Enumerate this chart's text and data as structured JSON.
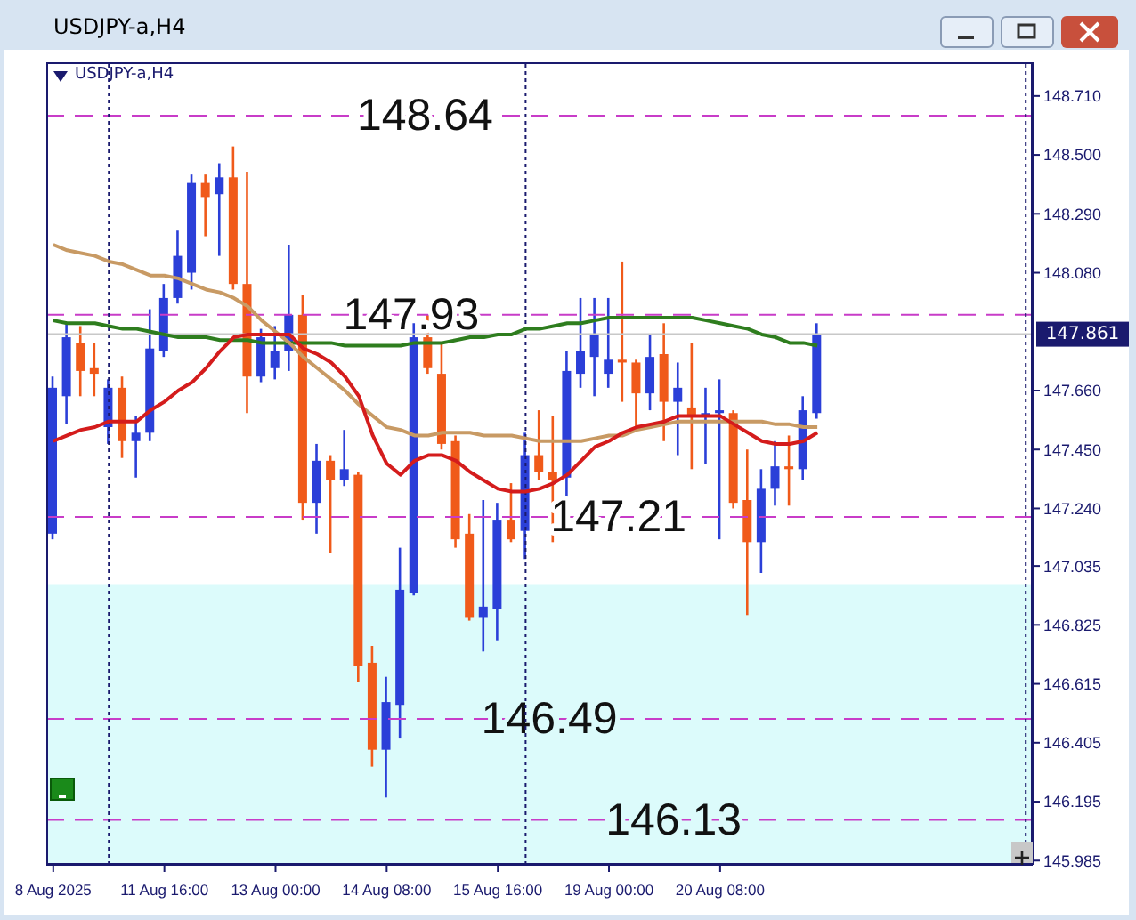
{
  "chart_data": {
    "type": "candlestick",
    "title": "USDJPY-a,H4",
    "subtitle": "USDJPY-a,H4",
    "categories": [
      "8 Aug 2025",
      null,
      null,
      null,
      null,
      null,
      null,
      null,
      "11 Aug 16:00",
      null,
      null,
      null,
      null,
      null,
      null,
      null,
      "13 Aug 00:00",
      null,
      null,
      null,
      null,
      null,
      null,
      null,
      "14 Aug 08:00",
      null,
      null,
      null,
      null,
      null,
      null,
      null,
      "15 Aug 16:00",
      null,
      null,
      null,
      null,
      null,
      null,
      null,
      "19 Aug 00:00",
      null,
      null,
      null,
      null,
      null,
      null,
      null,
      "20 Aug 08:00",
      null,
      null,
      null,
      null,
      null,
      null,
      null,
      null,
      null,
      null,
      null,
      null,
      null,
      null,
      null,
      null,
      null,
      null,
      null,
      null,
      null,
      null
    ],
    "ylim": [
      145.97,
      148.83
    ],
    "yticks": [
      {
        "value": 148.71,
        "label": "148.710"
      },
      {
        "value": 148.5,
        "label": "148.500"
      },
      {
        "value": 148.29,
        "label": "148.290"
      },
      {
        "value": 148.08,
        "label": "148.080"
      },
      {
        "value": 147.66,
        "label": "147.660"
      },
      {
        "value": 147.45,
        "label": "147.450"
      },
      {
        "value": 147.24,
        "label": "147.240"
      },
      {
        "value": 147.035,
        "label": "147.035"
      },
      {
        "value": 146.825,
        "label": "146.825"
      },
      {
        "value": 146.615,
        "label": "146.615"
      },
      {
        "value": 146.405,
        "label": "146.405"
      },
      {
        "value": 146.195,
        "label": "146.195"
      },
      {
        "value": 145.985,
        "label": "145.985"
      }
    ],
    "ohlc": [
      [
        147.15,
        147.71,
        147.13,
        147.67
      ],
      [
        147.64,
        147.9,
        147.54,
        147.85
      ],
      [
        147.83,
        147.89,
        147.64,
        147.73
      ],
      [
        147.74,
        147.83,
        147.64,
        147.72
      ],
      [
        147.53,
        147.7,
        147.47,
        147.67
      ],
      [
        147.67,
        147.71,
        147.42,
        147.48
      ],
      [
        147.48,
        147.57,
        147.35,
        147.51
      ],
      [
        147.51,
        147.95,
        147.48,
        147.81
      ],
      [
        147.8,
        148.04,
        147.78,
        147.99
      ],
      [
        147.99,
        148.23,
        147.97,
        148.14
      ],
      [
        148.08,
        148.43,
        148.02,
        148.4
      ],
      [
        148.4,
        148.43,
        148.21,
        148.35
      ],
      [
        148.36,
        148.47,
        148.14,
        148.42
      ],
      [
        148.42,
        148.53,
        148.02,
        148.04
      ],
      [
        148.04,
        148.44,
        147.58,
        147.71
      ],
      [
        147.71,
        147.88,
        147.69,
        147.85
      ],
      [
        147.74,
        147.89,
        147.7,
        147.8
      ],
      [
        147.8,
        148.18,
        147.73,
        147.93
      ],
      [
        147.93,
        148.0,
        147.2,
        147.26
      ],
      [
        147.26,
        147.47,
        147.15,
        147.41
      ],
      [
        147.41,
        147.43,
        147.08,
        147.34
      ],
      [
        147.34,
        147.52,
        147.32,
        147.38
      ],
      [
        147.36,
        147.37,
        146.62,
        146.68
      ],
      [
        146.69,
        146.75,
        146.32,
        146.38
      ],
      [
        146.38,
        146.64,
        146.21,
        146.55
      ],
      [
        146.54,
        147.1,
        146.42,
        146.95
      ],
      [
        146.94,
        147.9,
        146.93,
        147.85
      ],
      [
        147.85,
        147.93,
        147.72,
        147.74
      ],
      [
        147.72,
        147.83,
        147.45,
        147.47
      ],
      [
        147.48,
        147.5,
        147.1,
        147.13
      ],
      [
        147.15,
        147.22,
        146.84,
        146.85
      ],
      [
        146.85,
        147.27,
        146.73,
        146.89
      ],
      [
        146.88,
        147.26,
        146.77,
        147.2
      ],
      [
        147.2,
        147.33,
        147.12,
        147.13
      ],
      [
        147.16,
        147.51,
        147.06,
        147.43
      ],
      [
        147.43,
        147.59,
        147.34,
        147.37
      ],
      [
        147.37,
        147.57,
        147.12,
        147.34
      ],
      [
        147.35,
        147.8,
        147.27,
        147.73
      ],
      [
        147.72,
        147.99,
        147.67,
        147.8
      ],
      [
        147.78,
        147.99,
        147.64,
        147.86
      ],
      [
        147.72,
        147.99,
        147.67,
        147.77
      ],
      [
        147.77,
        148.12,
        147.62,
        147.76
      ],
      [
        147.76,
        147.77,
        147.52,
        147.65
      ],
      [
        147.65,
        147.86,
        147.59,
        147.78
      ],
      [
        147.79,
        147.9,
        147.48,
        147.62
      ],
      [
        147.62,
        147.76,
        147.43,
        147.67
      ],
      [
        147.6,
        147.83,
        147.38,
        147.57
      ],
      [
        147.57,
        147.67,
        147.4,
        147.58
      ],
      [
        147.58,
        147.7,
        147.13,
        147.59
      ],
      [
        147.58,
        147.59,
        147.24,
        147.26
      ],
      [
        147.27,
        147.45,
        146.86,
        147.12
      ],
      [
        147.12,
        147.38,
        147.01,
        147.31
      ],
      [
        147.31,
        147.48,
        147.25,
        147.39
      ],
      [
        147.39,
        147.5,
        147.25,
        147.38
      ],
      [
        147.38,
        147.64,
        147.34,
        147.59
      ],
      [
        147.58,
        147.9,
        147.56,
        147.86
      ],
      null,
      null,
      null,
      null,
      null,
      null,
      null,
      null,
      null,
      null,
      null,
      null,
      null,
      null,
      null
    ],
    "colors": [
      "#2b3fd8",
      "#2b3fd8",
      "#f05a1a",
      "#f05a1a",
      "#2b3fd8",
      "#f05a1a",
      "#2b3fd8",
      "#2b3fd8",
      "#2b3fd8",
      "#2b3fd8",
      "#2b3fd8",
      "#f05a1a",
      "#2b3fd8",
      "#f05a1a",
      "#f05a1a",
      "#2b3fd8",
      "#2b3fd8",
      "#2b3fd8",
      "#f05a1a",
      "#2b3fd8",
      "#f05a1a",
      "#2b3fd8",
      "#f05a1a",
      "#f05a1a",
      "#2b3fd8",
      "#2b3fd8",
      "#2b3fd8",
      "#f05a1a",
      "#f05a1a",
      "#f05a1a",
      "#f05a1a",
      "#2b3fd8",
      "#2b3fd8",
      "#f05a1a",
      "#2b3fd8",
      "#f05a1a",
      "#f05a1a",
      "#2b3fd8",
      "#2b3fd8",
      "#2b3fd8",
      "#2b3fd8",
      "#f05a1a",
      "#f05a1a",
      "#2b3fd8",
      "#f05a1a",
      "#2b3fd8",
      "#f05a1a",
      "#2b3fd8",
      "#2b3fd8",
      "#f05a1a",
      "#f05a1a",
      "#2b3fd8",
      "#2b3fd8",
      "#f05a1a",
      "#2b3fd8",
      "#2b3fd8",
      null,
      null,
      null,
      null,
      null,
      null,
      null,
      null,
      null,
      null,
      null,
      null,
      null,
      null,
      null
    ],
    "series": [
      {
        "type": "line",
        "color": "#2e7d1e",
        "values": [
          147.91,
          147.9,
          147.9,
          147.9,
          147.89,
          147.88,
          147.88,
          147.87,
          147.86,
          147.85,
          147.85,
          147.85,
          147.84,
          147.84,
          147.84,
          147.83,
          147.83,
          147.83,
          147.83,
          147.83,
          147.83,
          147.82,
          147.82,
          147.82,
          147.82,
          147.82,
          147.83,
          147.83,
          147.83,
          147.84,
          147.85,
          147.85,
          147.86,
          147.86,
          147.88,
          147.88,
          147.89,
          147.9,
          147.9,
          147.91,
          147.92,
          147.92,
          147.92,
          147.92,
          147.92,
          147.92,
          147.92,
          147.91,
          147.9,
          147.89,
          147.88,
          147.86,
          147.85,
          147.83,
          147.83,
          147.82,
          null,
          null,
          null,
          null,
          null,
          null,
          null,
          null,
          null,
          null,
          null,
          null,
          null,
          null,
          null
        ]
      },
      {
        "type": "line",
        "color": "#c89a64",
        "values": [
          148.18,
          148.16,
          148.15,
          148.14,
          148.12,
          148.11,
          148.09,
          148.07,
          148.07,
          148.06,
          148.04,
          148.02,
          148.01,
          147.99,
          147.96,
          147.91,
          147.87,
          147.83,
          147.78,
          147.74,
          147.7,
          147.66,
          147.61,
          147.57,
          147.53,
          147.52,
          147.5,
          147.5,
          147.51,
          147.51,
          147.51,
          147.5,
          147.5,
          147.5,
          147.49,
          147.48,
          147.48,
          147.48,
          147.48,
          147.49,
          147.5,
          147.5,
          147.52,
          147.53,
          147.54,
          147.55,
          147.55,
          147.55,
          147.55,
          147.55,
          147.55,
          147.55,
          147.54,
          147.54,
          147.53,
          147.53,
          null,
          null,
          null,
          null,
          null,
          null,
          null,
          null,
          null,
          null,
          null,
          null,
          null,
          null,
          null
        ]
      },
      {
        "type": "line",
        "color": "#d41c1c",
        "values": [
          147.48,
          147.5,
          147.52,
          147.53,
          147.55,
          147.55,
          147.55,
          147.59,
          147.62,
          147.66,
          147.69,
          147.74,
          147.8,
          147.85,
          147.86,
          147.86,
          147.86,
          147.86,
          147.81,
          147.79,
          147.76,
          147.71,
          147.64,
          147.5,
          147.4,
          147.36,
          147.41,
          147.43,
          147.43,
          147.41,
          147.37,
          147.34,
          147.31,
          147.3,
          147.3,
          147.31,
          147.33,
          147.36,
          147.41,
          147.46,
          147.48,
          147.51,
          147.53,
          147.54,
          147.55,
          147.57,
          147.57,
          147.57,
          147.57,
          147.54,
          147.51,
          147.48,
          147.47,
          147.47,
          147.48,
          147.51,
          null,
          null,
          null,
          null,
          null,
          null,
          null,
          null,
          null,
          null,
          null,
          null,
          null,
          null,
          null
        ]
      }
    ],
    "ref_lines": [
      {
        "axis": "y",
        "value": 148.64,
        "label": "148.64",
        "color": "#c83cc8",
        "line_style": "dashed"
      },
      {
        "axis": "y",
        "value": 147.93,
        "label": "147.93",
        "color": "#c83cc8",
        "line_style": "dashed"
      },
      {
        "axis": "y",
        "value": 147.21,
        "label": "147.21",
        "color": "#c83cc8",
        "line_style": "dashed"
      },
      {
        "axis": "y",
        "value": 146.49,
        "label": "146.49",
        "color": "#c83cc8",
        "line_style": "dashed"
      },
      {
        "axis": "y",
        "value": 146.13,
        "label": "146.13",
        "color": "#c83cc8",
        "line_style": "dashed"
      },
      {
        "axis": "y",
        "value": 147.861,
        "label": "147.861",
        "color": "#c8c8c8",
        "line_style": "solid"
      }
    ],
    "grid": "x",
    "bands": [
      {
        "axis": "y",
        "from": 145.97,
        "to": 146.97,
        "color": "#dcfbfb"
      }
    ]
  }
}
